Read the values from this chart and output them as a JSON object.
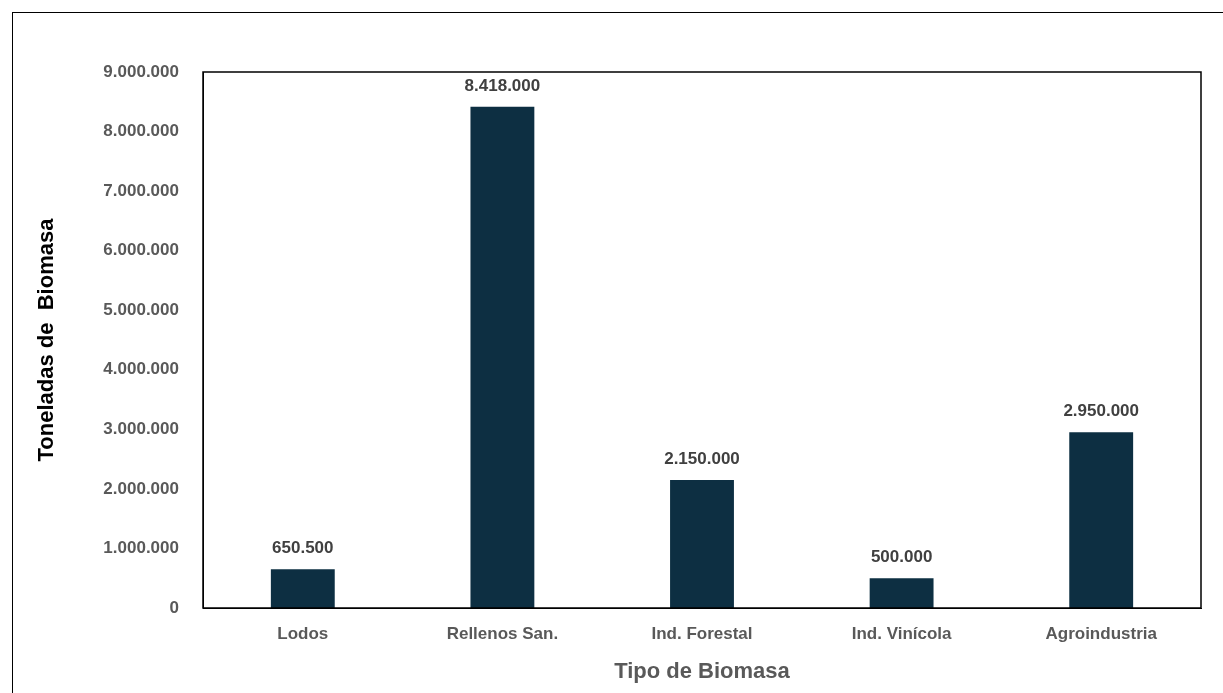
{
  "chart_data": {
    "type": "bar",
    "xlabel": "Tipo de Biomasa",
    "ylabel": "Toneladas de  Biomasa",
    "categories": [
      "Lodos",
      "Rellenos San.",
      "Ind. Forestal",
      "Ind. Vinícola",
      "Agroindustria"
    ],
    "values": [
      650500,
      8418000,
      2150000,
      500000,
      2950000
    ],
    "value_labels": [
      "650.500",
      "8.418.000",
      "2.150.000",
      "500.000",
      "2.950.000"
    ],
    "color": "#0d2f42",
    "ylim": [
      0,
      9000000
    ],
    "yticks": [
      {
        "value": 0,
        "label": "0"
      },
      {
        "value": 1000000,
        "label": "1.000.000"
      },
      {
        "value": 2000000,
        "label": "2.000.000"
      },
      {
        "value": 3000000,
        "label": "3.000.000"
      },
      {
        "value": 4000000,
        "label": "4.000.000"
      },
      {
        "value": 5000000,
        "label": "5.000.000"
      },
      {
        "value": 6000000,
        "label": "6.000.000"
      },
      {
        "value": 7000000,
        "label": "7.000.000"
      },
      {
        "value": 8000000,
        "label": "8.000.000"
      },
      {
        "value": 9000000,
        "label": "9.000.000"
      }
    ],
    "grid": false,
    "legend": false
  }
}
